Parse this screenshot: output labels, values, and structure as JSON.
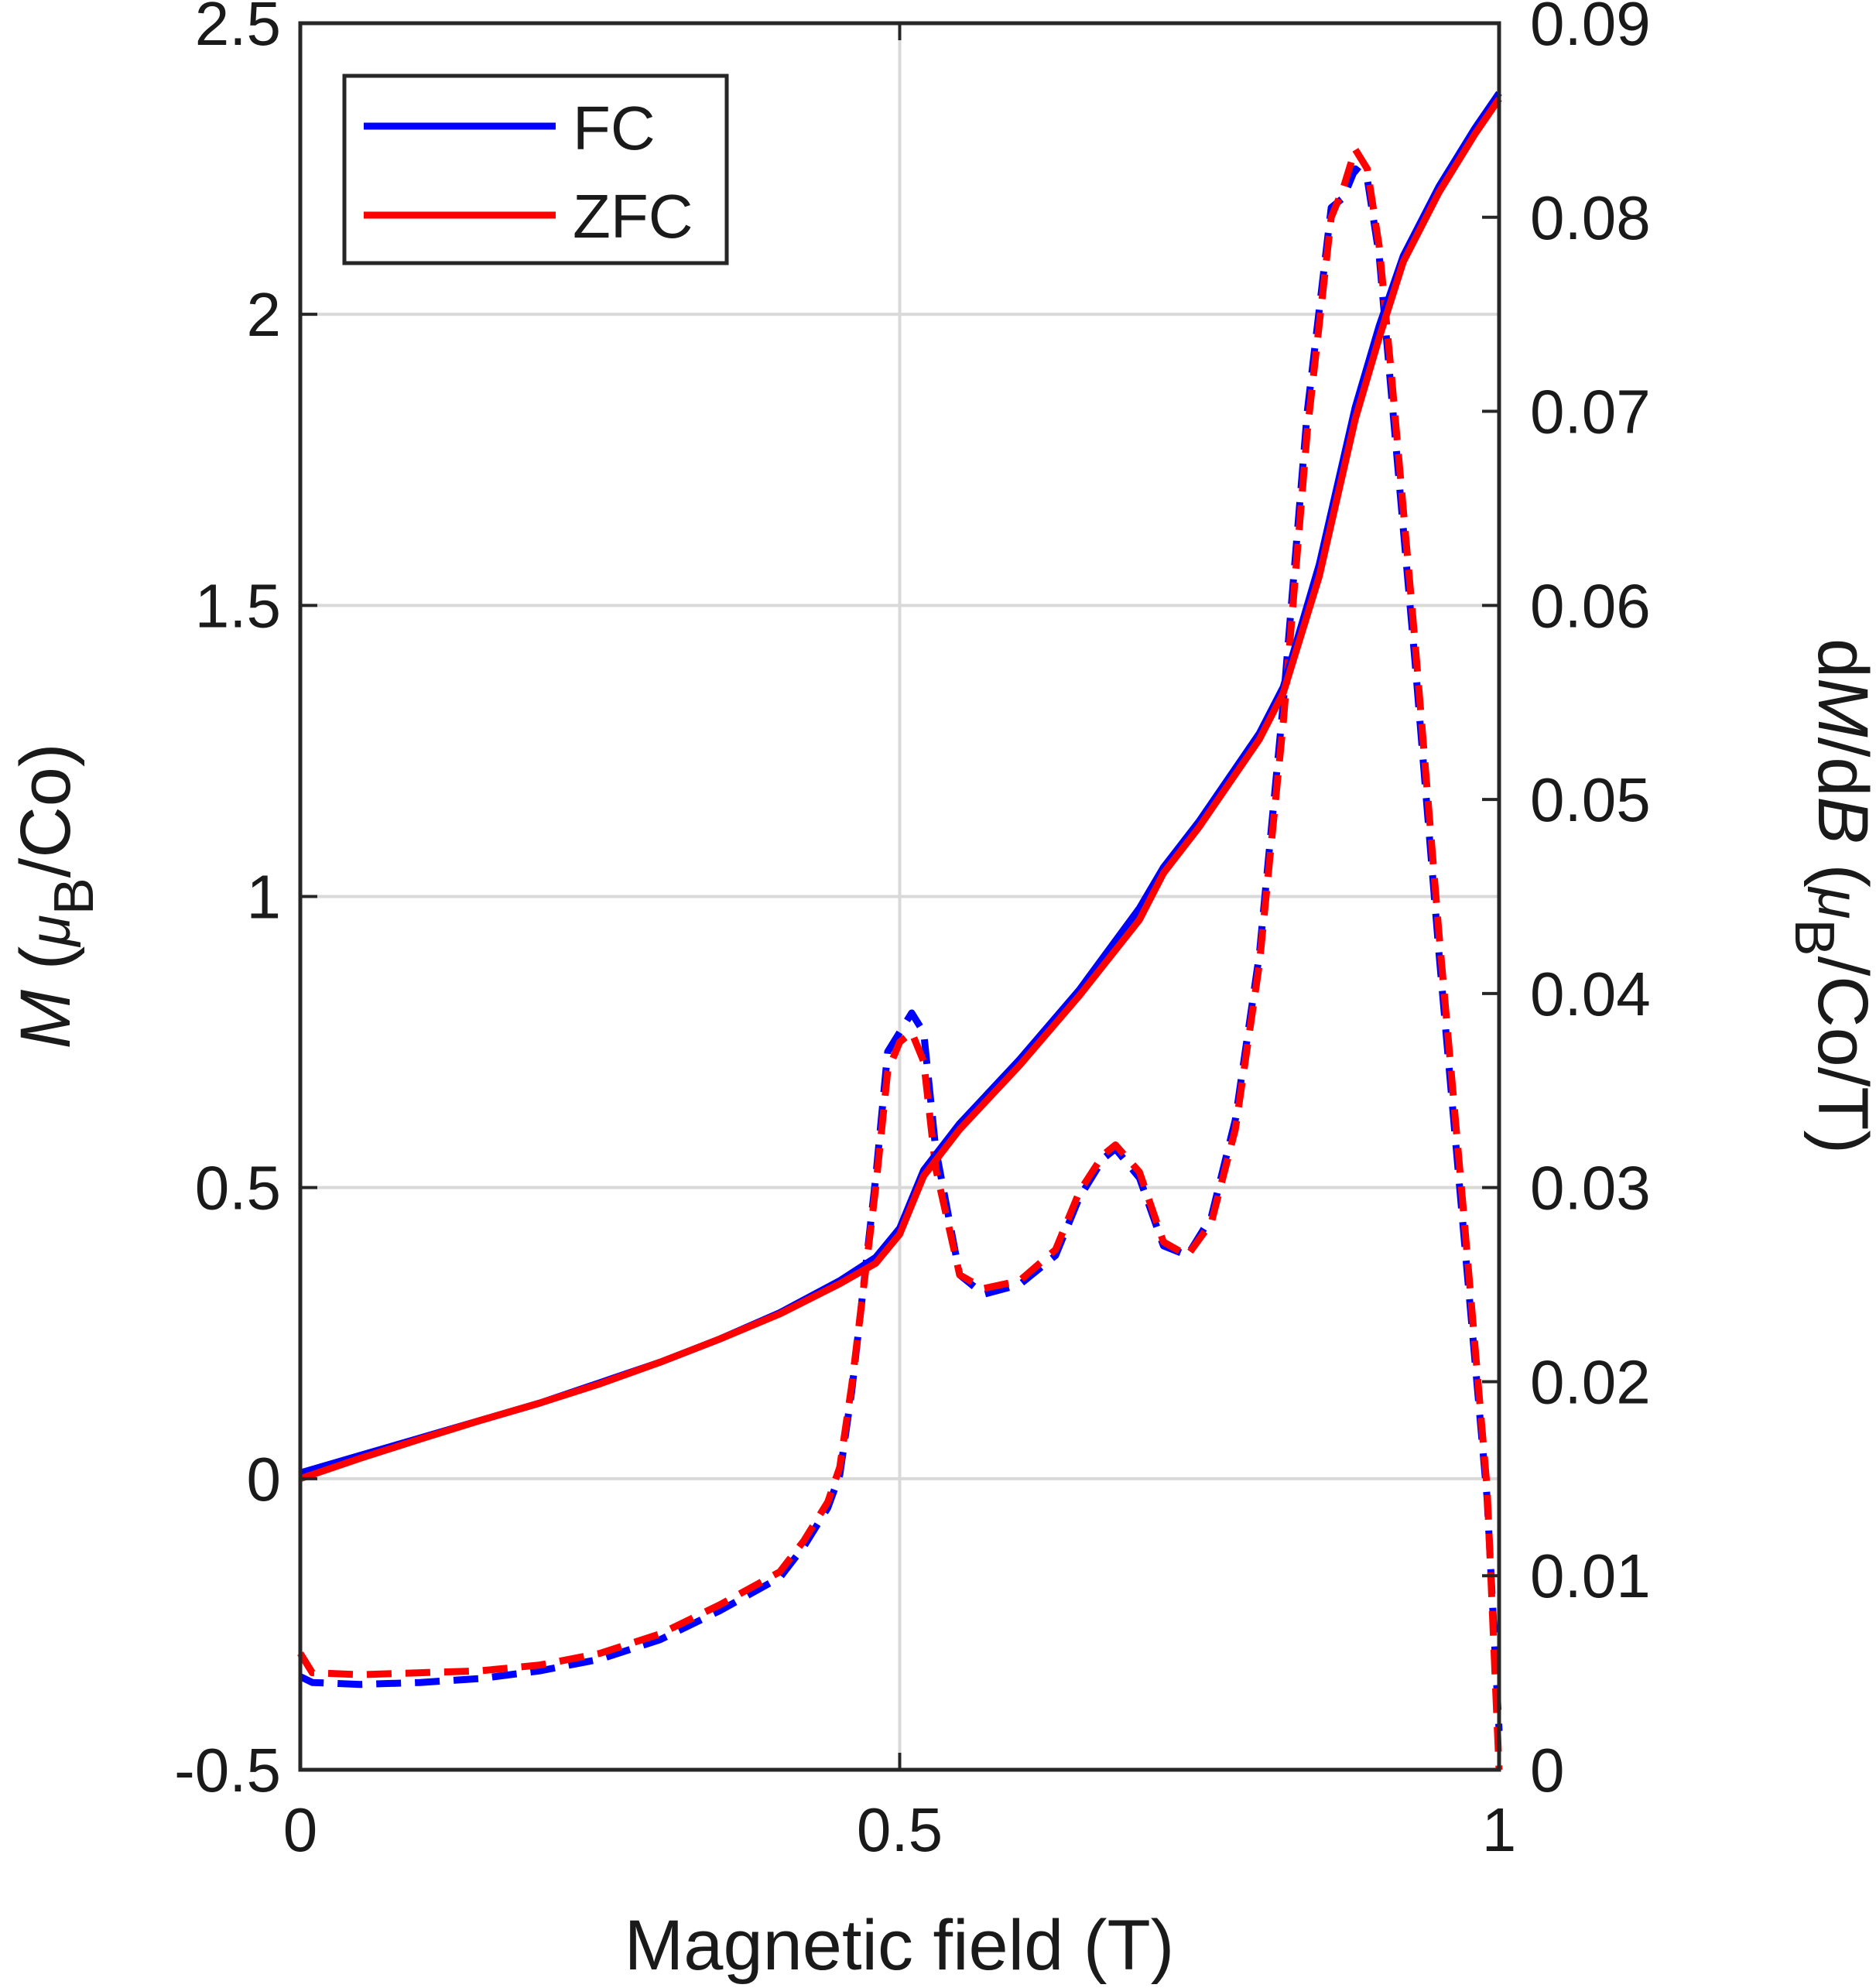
{
  "chart_data": {
    "type": "line",
    "xlabel": "Magnetic field (T)",
    "ylabel_left": {
      "prefix": "M",
      "open": " (",
      "mu": "μ",
      "sub": "B",
      "rest": "/Co)"
    },
    "ylabel_right": {
      "d1": "d",
      "m": "M",
      "slash": "/d",
      "b": "B",
      "open": " (",
      "mu": "μ",
      "sub": "B",
      "rest": "/Co/T)"
    },
    "xlim": [
      0,
      1
    ],
    "ylim_left": [
      -0.5,
      2.5
    ],
    "ylim_right": [
      0,
      0.09
    ],
    "x_ticks": [
      0,
      0.5,
      1
    ],
    "x_tick_labels": [
      "0",
      "0.5",
      "1"
    ],
    "y_left_ticks": [
      -0.5,
      0,
      0.5,
      1,
      1.5,
      2,
      2.5
    ],
    "y_left_tick_labels": [
      "-0.5",
      "0",
      "0.5",
      "1",
      "1.5",
      "2",
      "2.5"
    ],
    "y_right_ticks": [
      0,
      0.01,
      0.02,
      0.03,
      0.04,
      0.05,
      0.06,
      0.07,
      0.08,
      0.09
    ],
    "y_right_tick_labels": [
      "0",
      "0.01",
      "0.02",
      "0.03",
      "0.04",
      "0.05",
      "0.06",
      "0.07",
      "0.08",
      "0.09"
    ],
    "grid": true,
    "legend": {
      "placement": "top-left",
      "entries": [
        {
          "label": "FC",
          "color": "#0000ff"
        },
        {
          "label": "ZFC",
          "color": "#ff0000"
        }
      ]
    },
    "series": [
      {
        "name": "FC",
        "axis": "left",
        "style": "solid",
        "color": "#0000ff",
        "x": [
          0,
          0.05,
          0.1,
          0.15,
          0.2,
          0.25,
          0.3,
          0.35,
          0.4,
          0.45,
          0.48,
          0.5,
          0.51,
          0.52,
          0.55,
          0.6,
          0.65,
          0.7,
          0.72,
          0.75,
          0.8,
          0.82,
          0.85,
          0.88,
          0.9,
          0.92,
          0.95,
          0.98,
          1.0
        ],
        "y": [
          0.01,
          0.04,
          0.07,
          0.1,
          0.13,
          0.165,
          0.2,
          0.24,
          0.285,
          0.34,
          0.38,
          0.43,
          0.48,
          0.53,
          0.61,
          0.72,
          0.84,
          0.98,
          1.05,
          1.13,
          1.28,
          1.36,
          1.57,
          1.84,
          1.98,
          2.1,
          2.22,
          2.32,
          2.38
        ]
      },
      {
        "name": "ZFC",
        "axis": "left",
        "style": "solid",
        "color": "#ff0000",
        "x": [
          0,
          0.05,
          0.1,
          0.15,
          0.2,
          0.25,
          0.3,
          0.35,
          0.4,
          0.45,
          0.48,
          0.5,
          0.51,
          0.52,
          0.55,
          0.6,
          0.65,
          0.7,
          0.72,
          0.75,
          0.8,
          0.82,
          0.85,
          0.88,
          0.9,
          0.92,
          0.95,
          0.98,
          1.0
        ],
        "y": [
          0.0,
          0.035,
          0.068,
          0.1,
          0.13,
          0.163,
          0.2,
          0.24,
          0.283,
          0.335,
          0.37,
          0.42,
          0.47,
          0.52,
          0.6,
          0.71,
          0.83,
          0.96,
          1.04,
          1.12,
          1.27,
          1.35,
          1.55,
          1.82,
          1.96,
          2.09,
          2.21,
          2.31,
          2.37
        ]
      },
      {
        "name": "FC dM/dB",
        "axis": "right",
        "style": "dashed",
        "color": "#0000ff",
        "x": [
          0,
          0.01,
          0.05,
          0.1,
          0.15,
          0.2,
          0.25,
          0.3,
          0.35,
          0.4,
          0.42,
          0.44,
          0.45,
          0.46,
          0.48,
          0.49,
          0.5,
          0.51,
          0.52,
          0.53,
          0.55,
          0.57,
          0.6,
          0.63,
          0.65,
          0.67,
          0.68,
          0.7,
          0.72,
          0.74,
          0.76,
          0.78,
          0.8,
          0.82,
          0.84,
          0.86,
          0.87,
          0.88,
          0.89,
          0.9,
          0.91,
          0.93,
          0.95,
          0.97,
          0.99,
          1.0
        ],
        "y": [
          0.0048,
          0.0045,
          0.0044,
          0.0045,
          0.0047,
          0.0051,
          0.0057,
          0.0067,
          0.0082,
          0.0099,
          0.0115,
          0.0135,
          0.0152,
          0.0195,
          0.0305,
          0.037,
          0.038,
          0.039,
          0.038,
          0.032,
          0.0255,
          0.0245,
          0.025,
          0.0265,
          0.0295,
          0.0315,
          0.032,
          0.0305,
          0.027,
          0.0265,
          0.0285,
          0.0335,
          0.042,
          0.055,
          0.07,
          0.0805,
          0.081,
          0.0825,
          0.082,
          0.078,
          0.071,
          0.057,
          0.042,
          0.028,
          0.014,
          0.002
        ]
      },
      {
        "name": "ZFC dM/dB",
        "axis": "right",
        "style": "dashed",
        "color": "#ff0000",
        "x": [
          0,
          0.01,
          0.05,
          0.1,
          0.15,
          0.2,
          0.25,
          0.3,
          0.35,
          0.4,
          0.42,
          0.44,
          0.45,
          0.46,
          0.48,
          0.49,
          0.5,
          0.51,
          0.52,
          0.53,
          0.55,
          0.57,
          0.6,
          0.63,
          0.65,
          0.67,
          0.68,
          0.7,
          0.72,
          0.74,
          0.76,
          0.78,
          0.8,
          0.82,
          0.84,
          0.86,
          0.87,
          0.88,
          0.89,
          0.9,
          0.91,
          0.93,
          0.95,
          0.97,
          0.99,
          1.0
        ],
        "y": [
          0.006,
          0.005,
          0.0049,
          0.005,
          0.0051,
          0.0054,
          0.006,
          0.007,
          0.0085,
          0.0102,
          0.0118,
          0.0138,
          0.0156,
          0.0198,
          0.03,
          0.036,
          0.0375,
          0.038,
          0.0365,
          0.031,
          0.0255,
          0.0248,
          0.0252,
          0.0268,
          0.0298,
          0.0317,
          0.0322,
          0.0308,
          0.0272,
          0.0265,
          0.0282,
          0.033,
          0.0415,
          0.054,
          0.069,
          0.08,
          0.0815,
          0.0835,
          0.0825,
          0.0785,
          0.072,
          0.058,
          0.043,
          0.029,
          0.0145,
          0.0
        ]
      }
    ]
  }
}
